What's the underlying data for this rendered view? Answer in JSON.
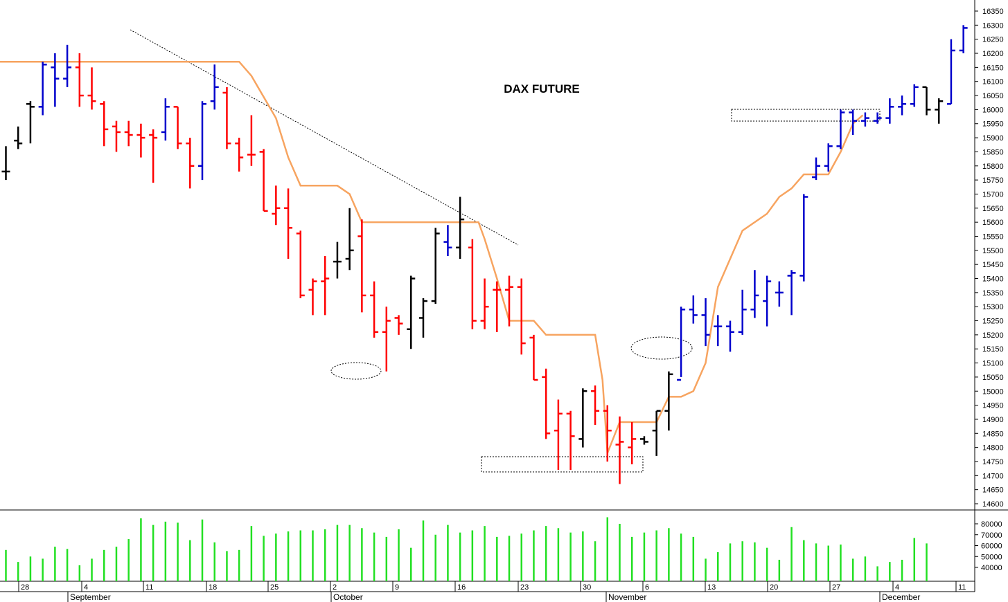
{
  "chart_data": {
    "type": "ohlc",
    "title": "DAX FUTURE",
    "price_axis": {
      "min": 14600,
      "max": 16350,
      "step": 50,
      "ticks": [
        "14600",
        "14650",
        "14700",
        "14750",
        "14800",
        "14850",
        "14900",
        "14950",
        "15000",
        "15050",
        "15100",
        "15150",
        "15200",
        "15250",
        "15300",
        "15350",
        "15400",
        "15450",
        "15500",
        "15550",
        "15600",
        "15650",
        "15700",
        "15750",
        "15800",
        "15850",
        "15900",
        "15950",
        "16000",
        "16050",
        "16100",
        "16150",
        "16200",
        "16250",
        "16300",
        "16350"
      ]
    },
    "volume_axis": {
      "min": 30000,
      "max": 85000,
      "ticks": [
        "40000",
        "50000",
        "60000",
        "70000",
        "80000"
      ]
    },
    "date_axis": {
      "day_labels": [
        "28",
        "4",
        "11",
        "18",
        "25",
        "2",
        "9",
        "16",
        "23",
        "30",
        "6",
        "13",
        "20",
        "27",
        "4",
        "11"
      ],
      "month_labels": [
        "September",
        "October",
        "November",
        "December"
      ]
    },
    "colors": {
      "down": "#ff0000",
      "up": "#0000cc",
      "neutral": "#000000",
      "ma": "#f7a460",
      "volume": "#22e022"
    },
    "bars": [
      {
        "i": 0,
        "o": 15780,
        "h": 15870,
        "l": 15750,
        "c": 15780,
        "color": "neutral"
      },
      {
        "i": 1,
        "o": 15890,
        "h": 15940,
        "l": 15860,
        "c": 15880,
        "color": "neutral"
      },
      {
        "i": 2,
        "o": 16020,
        "h": 16030,
        "l": 15880,
        "c": 16010,
        "color": "neutral"
      },
      {
        "i": 3,
        "o": 16010,
        "h": 16170,
        "l": 15980,
        "c": 16160,
        "color": "up"
      },
      {
        "i": 4,
        "o": 16150,
        "h": 16200,
        "l": 16010,
        "c": 16110,
        "color": "up"
      },
      {
        "i": 5,
        "o": 16110,
        "h": 16230,
        "l": 16080,
        "c": 16150,
        "color": "up"
      },
      {
        "i": 6,
        "o": 16150,
        "h": 16200,
        "l": 16010,
        "c": 16050,
        "color": "down"
      },
      {
        "i": 7,
        "o": 16050,
        "h": 16150,
        "l": 16000,
        "c": 16030,
        "color": "down"
      },
      {
        "i": 8,
        "o": 16020,
        "h": 16030,
        "l": 15870,
        "c": 15930,
        "color": "down"
      },
      {
        "i": 9,
        "o": 15940,
        "h": 15960,
        "l": 15850,
        "c": 15920,
        "color": "down"
      },
      {
        "i": 10,
        "o": 15920,
        "h": 15960,
        "l": 15870,
        "c": 15910,
        "color": "down"
      },
      {
        "i": 11,
        "o": 15910,
        "h": 15950,
        "l": 15830,
        "c": 15900,
        "color": "down"
      },
      {
        "i": 12,
        "o": 15910,
        "h": 15930,
        "l": 15740,
        "c": 15900,
        "color": "down"
      },
      {
        "i": 13,
        "o": 15920,
        "h": 16040,
        "l": 15890,
        "c": 16010,
        "color": "up"
      },
      {
        "i": 14,
        "o": 16010,
        "h": 16010,
        "l": 15860,
        "c": 15880,
        "color": "down"
      },
      {
        "i": 15,
        "o": 15880,
        "h": 15900,
        "l": 15720,
        "c": 15800,
        "color": "down"
      },
      {
        "i": 16,
        "o": 15800,
        "h": 16030,
        "l": 15750,
        "c": 16020,
        "color": "up"
      },
      {
        "i": 17,
        "o": 16030,
        "h": 16160,
        "l": 16000,
        "c": 16080,
        "color": "up"
      },
      {
        "i": 18,
        "o": 16060,
        "h": 16080,
        "l": 15860,
        "c": 15880,
        "color": "down"
      },
      {
        "i": 19,
        "o": 15880,
        "h": 15900,
        "l": 15780,
        "c": 15830,
        "color": "down"
      },
      {
        "i": 20,
        "o": 15840,
        "h": 15980,
        "l": 15800,
        "c": 15840,
        "color": "down"
      },
      {
        "i": 21,
        "o": 15850,
        "h": 15860,
        "l": 15640,
        "c": 15640,
        "color": "down"
      },
      {
        "i": 22,
        "o": 15630,
        "h": 15730,
        "l": 15590,
        "c": 15650,
        "color": "down"
      },
      {
        "i": 23,
        "o": 15650,
        "h": 15720,
        "l": 15470,
        "c": 15580,
        "color": "down"
      },
      {
        "i": 24,
        "o": 15560,
        "h": 15570,
        "l": 15330,
        "c": 15340,
        "color": "down"
      },
      {
        "i": 25,
        "o": 15360,
        "h": 15400,
        "l": 15270,
        "c": 15390,
        "color": "down"
      },
      {
        "i": 26,
        "o": 15390,
        "h": 15480,
        "l": 15270,
        "c": 15400,
        "color": "down"
      },
      {
        "i": 27,
        "o": 15460,
        "h": 15530,
        "l": 15400,
        "c": 15460,
        "color": "neutral"
      },
      {
        "i": 28,
        "o": 15470,
        "h": 15650,
        "l": 15430,
        "c": 15500,
        "color": "neutral"
      },
      {
        "i": 29,
        "o": 15550,
        "h": 15610,
        "l": 15280,
        "c": 15340,
        "color": "down"
      },
      {
        "i": 30,
        "o": 15340,
        "h": 15390,
        "l": 15190,
        "c": 15210,
        "color": "down"
      },
      {
        "i": 31,
        "o": 15210,
        "h": 15300,
        "l": 15070,
        "c": 15250,
        "color": "down"
      },
      {
        "i": 32,
        "o": 15260,
        "h": 15270,
        "l": 15200,
        "c": 15240,
        "color": "down"
      },
      {
        "i": 33,
        "o": 15220,
        "h": 15410,
        "l": 15150,
        "c": 15400,
        "color": "neutral"
      },
      {
        "i": 34,
        "o": 15260,
        "h": 15330,
        "l": 15190,
        "c": 15320,
        "color": "neutral"
      },
      {
        "i": 35,
        "o": 15320,
        "h": 15580,
        "l": 15310,
        "c": 15560,
        "color": "neutral"
      },
      {
        "i": 36,
        "o": 15530,
        "h": 15590,
        "l": 15480,
        "c": 15510,
        "color": "up"
      },
      {
        "i": 37,
        "o": 15510,
        "h": 15690,
        "l": 15470,
        "c": 15610,
        "color": "neutral"
      },
      {
        "i": 38,
        "o": 15510,
        "h": 15540,
        "l": 15220,
        "c": 15250,
        "color": "down"
      },
      {
        "i": 39,
        "o": 15250,
        "h": 15400,
        "l": 15220,
        "c": 15300,
        "color": "down"
      },
      {
        "i": 40,
        "o": 15360,
        "h": 15390,
        "l": 15210,
        "c": 15360,
        "color": "down"
      },
      {
        "i": 41,
        "o": 15360,
        "h": 15410,
        "l": 15230,
        "c": 15370,
        "color": "down"
      },
      {
        "i": 42,
        "o": 15370,
        "h": 15400,
        "l": 15130,
        "c": 15170,
        "color": "down"
      },
      {
        "i": 43,
        "o": 15190,
        "h": 15200,
        "l": 15040,
        "c": 15040,
        "color": "down"
      },
      {
        "i": 44,
        "o": 15050,
        "h": 15080,
        "l": 14830,
        "c": 14850,
        "color": "down"
      },
      {
        "i": 45,
        "o": 14860,
        "h": 14970,
        "l": 14720,
        "c": 14920,
        "color": "down"
      },
      {
        "i": 46,
        "o": 14920,
        "h": 14930,
        "l": 14720,
        "c": 14840,
        "color": "down"
      },
      {
        "i": 47,
        "o": 14830,
        "h": 15010,
        "l": 14800,
        "c": 15000,
        "color": "neutral"
      },
      {
        "i": 48,
        "o": 15000,
        "h": 15020,
        "l": 14880,
        "c": 14930,
        "color": "down"
      },
      {
        "i": 49,
        "o": 14930,
        "h": 14950,
        "l": 14750,
        "c": 14860,
        "color": "down"
      },
      {
        "i": 50,
        "o": 14810,
        "h": 14910,
        "l": 14670,
        "c": 14820,
        "color": "down"
      },
      {
        "i": 51,
        "o": 14800,
        "h": 14890,
        "l": 14740,
        "c": 14830,
        "color": "down"
      },
      {
        "i": 52,
        "o": 14830,
        "h": 14840,
        "l": 14810,
        "c": 14820,
        "color": "neutral"
      },
      {
        "i": 53,
        "o": 14860,
        "h": 14930,
        "l": 14770,
        "c": 14930,
        "color": "neutral"
      },
      {
        "i": 54,
        "o": 14930,
        "h": 15070,
        "l": 14860,
        "c": 15060,
        "color": "neutral"
      },
      {
        "i": 55,
        "o": 15040,
        "h": 15300,
        "l": 15050,
        "c": 15290,
        "color": "up"
      },
      {
        "i": 56,
        "o": 15290,
        "h": 15340,
        "l": 15240,
        "c": 15270,
        "color": "up"
      },
      {
        "i": 57,
        "o": 15270,
        "h": 15330,
        "l": 15160,
        "c": 15200,
        "color": "up"
      },
      {
        "i": 58,
        "o": 15230,
        "h": 15270,
        "l": 15160,
        "c": 15230,
        "color": "up"
      },
      {
        "i": 59,
        "o": 15230,
        "h": 15250,
        "l": 15140,
        "c": 15210,
        "color": "up"
      },
      {
        "i": 60,
        "o": 15210,
        "h": 15360,
        "l": 15200,
        "c": 15290,
        "color": "up"
      },
      {
        "i": 61,
        "o": 15290,
        "h": 15430,
        "l": 15260,
        "c": 15340,
        "color": "up"
      },
      {
        "i": 62,
        "o": 15320,
        "h": 15410,
        "l": 15230,
        "c": 15390,
        "color": "up"
      },
      {
        "i": 63,
        "o": 15350,
        "h": 15390,
        "l": 15300,
        "c": 15350,
        "color": "up"
      },
      {
        "i": 64,
        "o": 15410,
        "h": 15430,
        "l": 15270,
        "c": 15420,
        "color": "up"
      },
      {
        "i": 65,
        "o": 15410,
        "h": 15700,
        "l": 15390,
        "c": 15690,
        "color": "up"
      },
      {
        "i": 66,
        "o": 15760,
        "h": 15830,
        "l": 15750,
        "c": 15800,
        "color": "up"
      },
      {
        "i": 67,
        "o": 15800,
        "h": 15880,
        "l": 15780,
        "c": 15870,
        "color": "up"
      },
      {
        "i": 68,
        "o": 15870,
        "h": 16000,
        "l": 15860,
        "c": 15990,
        "color": "up"
      },
      {
        "i": 69,
        "o": 15990,
        "h": 16000,
        "l": 15910,
        "c": 15960,
        "color": "up"
      },
      {
        "i": 70,
        "o": 15960,
        "h": 15990,
        "l": 15940,
        "c": 15970,
        "color": "up"
      },
      {
        "i": 71,
        "o": 15960,
        "h": 15990,
        "l": 15950,
        "c": 15970,
        "color": "up"
      },
      {
        "i": 72,
        "o": 15970,
        "h": 16040,
        "l": 15950,
        "c": 16010,
        "color": "up"
      },
      {
        "i": 73,
        "o": 16010,
        "h": 16050,
        "l": 15980,
        "c": 16020,
        "color": "up"
      },
      {
        "i": 74,
        "o": 16020,
        "h": 16090,
        "l": 16010,
        "c": 16080,
        "color": "up"
      },
      {
        "i": 75,
        "o": 16080,
        "h": 16080,
        "l": 15980,
        "c": 16000,
        "color": "neutral"
      },
      {
        "i": 76,
        "o": 16000,
        "h": 16040,
        "l": 15950,
        "c": 16030,
        "color": "neutral"
      },
      {
        "i": 77,
        "o": 16020,
        "h": 16250,
        "l": 16020,
        "c": 16210,
        "color": "up"
      },
      {
        "i": 78,
        "o": 16210,
        "h": 16300,
        "l": 16200,
        "c": 16290,
        "color": "up"
      }
    ],
    "ma": [
      {
        "i": -1.5,
        "v": 16170
      },
      {
        "i": 16,
        "v": 16170
      },
      {
        "i": 19,
        "v": 16170
      },
      {
        "i": 20,
        "v": 16120
      },
      {
        "i": 22,
        "v": 15970
      },
      {
        "i": 23,
        "v": 15830
      },
      {
        "i": 24,
        "v": 15730
      },
      {
        "i": 27,
        "v": 15730
      },
      {
        "i": 28,
        "v": 15700
      },
      {
        "i": 29,
        "v": 15600
      },
      {
        "i": 37,
        "v": 15600
      },
      {
        "i": 38.5,
        "v": 15600
      },
      {
        "i": 39,
        "v": 15540
      },
      {
        "i": 40,
        "v": 15400
      },
      {
        "i": 41,
        "v": 15250
      },
      {
        "i": 43,
        "v": 15250
      },
      {
        "i": 44,
        "v": 15200
      },
      {
        "i": 48,
        "v": 15200
      },
      {
        "i": 48.6,
        "v": 15040
      },
      {
        "i": 49,
        "v": 14780
      },
      {
        "i": 50,
        "v": 14890
      },
      {
        "i": 53,
        "v": 14890
      },
      {
        "i": 54,
        "v": 14980
      },
      {
        "i": 55,
        "v": 14980
      },
      {
        "i": 56,
        "v": 15000
      },
      {
        "i": 57,
        "v": 15100
      },
      {
        "i": 58,
        "v": 15370
      },
      {
        "i": 60,
        "v": 15570
      },
      {
        "i": 62,
        "v": 15630
      },
      {
        "i": 63,
        "v": 15690
      },
      {
        "i": 64,
        "v": 15720
      },
      {
        "i": 65,
        "v": 15770
      },
      {
        "i": 67,
        "v": 15770
      },
      {
        "i": 68,
        "v": 15850
      },
      {
        "i": 69,
        "v": 15950
      },
      {
        "i": 69.8,
        "v": 15980
      }
    ],
    "volume": [
      {
        "i": 0,
        "v": 56000
      },
      {
        "i": 1,
        "v": 45000
      },
      {
        "i": 2,
        "v": 50000
      },
      {
        "i": 3,
        "v": 48000
      },
      {
        "i": 4,
        "v": 59000
      },
      {
        "i": 5,
        "v": 57000
      },
      {
        "i": 6,
        "v": 42000
      },
      {
        "i": 7,
        "v": 48000
      },
      {
        "i": 8,
        "v": 56000
      },
      {
        "i": 9,
        "v": 59000
      },
      {
        "i": 10,
        "v": 66000
      },
      {
        "i": 11,
        "v": 85000
      },
      {
        "i": 12,
        "v": 79000
      },
      {
        "i": 13,
        "v": 82000
      },
      {
        "i": 14,
        "v": 81000
      },
      {
        "i": 15,
        "v": 65000
      },
      {
        "i": 16,
        "v": 84000
      },
      {
        "i": 17,
        "v": 63000
      },
      {
        "i": 18,
        "v": 55000
      },
      {
        "i": 19,
        "v": 56000
      },
      {
        "i": 20,
        "v": 78000
      },
      {
        "i": 21,
        "v": 69000
      },
      {
        "i": 22,
        "v": 71000
      },
      {
        "i": 23,
        "v": 73000
      },
      {
        "i": 24,
        "v": 74000
      },
      {
        "i": 25,
        "v": 74000
      },
      {
        "i": 26,
        "v": 75000
      },
      {
        "i": 27,
        "v": 79000
      },
      {
        "i": 28,
        "v": 79000
      },
      {
        "i": 29,
        "v": 76000
      },
      {
        "i": 30,
        "v": 72000
      },
      {
        "i": 31,
        "v": 68000
      },
      {
        "i": 32,
        "v": 75000
      },
      {
        "i": 33,
        "v": 58000
      },
      {
        "i": 34,
        "v": 83000
      },
      {
        "i": 35,
        "v": 70000
      },
      {
        "i": 36,
        "v": 79000
      },
      {
        "i": 37,
        "v": 72000
      },
      {
        "i": 38,
        "v": 74000
      },
      {
        "i": 39,
        "v": 78000
      },
      {
        "i": 40,
        "v": 68000
      },
      {
        "i": 41,
        "v": 69000
      },
      {
        "i": 42,
        "v": 71000
      },
      {
        "i": 43,
        "v": 74000
      },
      {
        "i": 44,
        "v": 78000
      },
      {
        "i": 45,
        "v": 76000
      },
      {
        "i": 46,
        "v": 72000
      },
      {
        "i": 47,
        "v": 73000
      },
      {
        "i": 48,
        "v": 64000
      },
      {
        "i": 49,
        "v": 86000
      },
      {
        "i": 50,
        "v": 80000
      },
      {
        "i": 51,
        "v": 68000
      },
      {
        "i": 52,
        "v": 72000
      },
      {
        "i": 53,
        "v": 74000
      },
      {
        "i": 54,
        "v": 76000
      },
      {
        "i": 55,
        "v": 71000
      },
      {
        "i": 56,
        "v": 68000
      },
      {
        "i": 57,
        "v": 48000
      },
      {
        "i": 58,
        "v": 54000
      },
      {
        "i": 59,
        "v": 62000
      },
      {
        "i": 60,
        "v": 64000
      },
      {
        "i": 61,
        "v": 63000
      },
      {
        "i": 62,
        "v": 58000
      },
      {
        "i": 63,
        "v": 47000
      },
      {
        "i": 64,
        "v": 77000
      },
      {
        "i": 65,
        "v": 65000
      },
      {
        "i": 66,
        "v": 62000
      },
      {
        "i": 67,
        "v": 60000
      },
      {
        "i": 68,
        "v": 61000
      },
      {
        "i": 69,
        "v": 48000
      },
      {
        "i": 70,
        "v": 50000
      },
      {
        "i": 71,
        "v": 41000
      },
      {
        "i": 72,
        "v": 45000
      },
      {
        "i": 73,
        "v": 47000
      },
      {
        "i": 74,
        "v": 67000
      },
      {
        "i": 75,
        "v": 62000
      }
    ]
  }
}
